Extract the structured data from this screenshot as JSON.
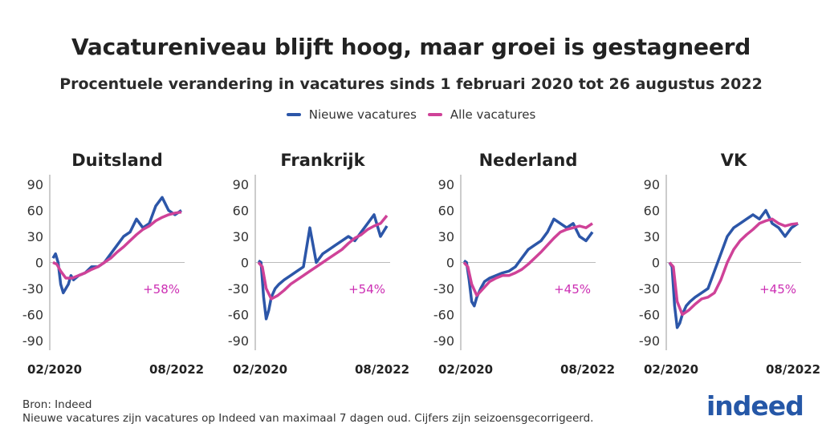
{
  "title": "Vacatureniveau blijft hoog, maar groei is gestagneerd",
  "subtitle": "Procentuele verandering in vacatures sinds 1 februari 2020 tot 26 augustus 2022",
  "legend": {
    "new_label": "Nieuwe vacatures",
    "all_label": "Alle vacatures"
  },
  "colors": {
    "new": "#2c56a8",
    "all": "#cf4298",
    "annotation": "#cc2eb3"
  },
  "footer": {
    "source": "Bron: Indeed",
    "note": "Nieuwe vacatures zijn vacatures op Indeed van maximaal 7 dagen oud. Cijfers zijn seizoensgecorrigeerd."
  },
  "logo": "indeed",
  "chart_data": [
    {
      "type": "line",
      "title": "Duitsland",
      "ylim": [
        -90,
        90
      ],
      "yticks": [
        "90",
        "60",
        "30",
        "0",
        "-30",
        "-60",
        "-90"
      ],
      "x_start_label": "02/2020",
      "x_end_label": "08/2022",
      "annotation": "+58%",
      "series": [
        {
          "name": "Nieuwe vacatures",
          "x": [
            0,
            0.02,
            0.04,
            0.06,
            0.08,
            0.1,
            0.12,
            0.14,
            0.16,
            0.2,
            0.25,
            0.3,
            0.35,
            0.4,
            0.45,
            0.5,
            0.55,
            0.6,
            0.65,
            0.7,
            0.75,
            0.8,
            0.85,
            0.9,
            0.95,
            1.0
          ],
          "values": [
            5,
            10,
            0,
            -25,
            -35,
            -30,
            -25,
            -15,
            -20,
            -15,
            -12,
            -5,
            -5,
            0,
            10,
            20,
            30,
            35,
            50,
            40,
            45,
            65,
            75,
            60,
            55,
            60
          ]
        },
        {
          "name": "Alle vacatures",
          "x": [
            0,
            0.03,
            0.06,
            0.1,
            0.15,
            0.2,
            0.25,
            0.3,
            0.35,
            0.4,
            0.45,
            0.5,
            0.55,
            0.6,
            0.65,
            0.7,
            0.75,
            0.8,
            0.85,
            0.9,
            0.95,
            1.0
          ],
          "values": [
            0,
            -2,
            -10,
            -18,
            -18,
            -15,
            -12,
            -8,
            -5,
            0,
            5,
            12,
            18,
            25,
            32,
            38,
            42,
            48,
            52,
            55,
            57,
            58
          ]
        }
      ]
    },
    {
      "type": "line",
      "title": "Frankrijk",
      "ylim": [
        -90,
        90
      ],
      "yticks": [
        "90",
        "60",
        "30",
        "0",
        "-30",
        "-60",
        "-90"
      ],
      "x_start_label": "02/2020",
      "x_end_label": "08/2022",
      "annotation": "+54%",
      "series": [
        {
          "name": "Nieuwe vacatures",
          "x": [
            0,
            0.02,
            0.04,
            0.06,
            0.08,
            0.1,
            0.13,
            0.16,
            0.2,
            0.25,
            0.3,
            0.35,
            0.4,
            0.45,
            0.5,
            0.55,
            0.6,
            0.65,
            0.7,
            0.75,
            0.8,
            0.85,
            0.9,
            0.95,
            1.0
          ],
          "values": [
            2,
            0,
            -40,
            -65,
            -55,
            -40,
            -30,
            -25,
            -20,
            -15,
            -10,
            -5,
            40,
            0,
            10,
            15,
            20,
            25,
            30,
            25,
            35,
            45,
            55,
            30,
            42
          ]
        },
        {
          "name": "Alle vacatures",
          "x": [
            0,
            0.03,
            0.06,
            0.1,
            0.15,
            0.2,
            0.25,
            0.3,
            0.35,
            0.4,
            0.45,
            0.5,
            0.55,
            0.6,
            0.65,
            0.7,
            0.75,
            0.8,
            0.85,
            0.9,
            0.95,
            1.0
          ],
          "values": [
            0,
            -5,
            -30,
            -42,
            -38,
            -32,
            -25,
            -20,
            -15,
            -10,
            -5,
            0,
            5,
            10,
            15,
            22,
            28,
            32,
            38,
            42,
            45,
            54
          ]
        }
      ]
    },
    {
      "type": "line",
      "title": "Nederland",
      "ylim": [
        -90,
        90
      ],
      "yticks": [
        "90",
        "60",
        "30",
        "0",
        "-30",
        "-60",
        "-90"
      ],
      "x_start_label": "02/2020",
      "x_end_label": "08/2022",
      "annotation": "+45%",
      "series": [
        {
          "name": "Nieuwe vacatures",
          "x": [
            0,
            0.02,
            0.04,
            0.06,
            0.08,
            0.1,
            0.13,
            0.16,
            0.2,
            0.25,
            0.3,
            0.35,
            0.4,
            0.45,
            0.5,
            0.55,
            0.6,
            0.65,
            0.7,
            0.75,
            0.8,
            0.85,
            0.9,
            0.95,
            1.0
          ],
          "values": [
            2,
            0,
            -20,
            -45,
            -50,
            -40,
            -30,
            -22,
            -18,
            -15,
            -12,
            -10,
            -5,
            5,
            15,
            20,
            25,
            35,
            50,
            45,
            40,
            45,
            30,
            25,
            35
          ]
        },
        {
          "name": "Alle vacatures",
          "x": [
            0,
            0.03,
            0.06,
            0.1,
            0.15,
            0.2,
            0.25,
            0.3,
            0.35,
            0.4,
            0.45,
            0.5,
            0.55,
            0.6,
            0.65,
            0.7,
            0.75,
            0.8,
            0.85,
            0.9,
            0.95,
            1.0
          ],
          "values": [
            0,
            -5,
            -25,
            -38,
            -30,
            -22,
            -18,
            -15,
            -15,
            -12,
            -8,
            -2,
            5,
            12,
            20,
            28,
            35,
            38,
            40,
            42,
            40,
            45
          ]
        }
      ]
    },
    {
      "type": "line",
      "title": "VK",
      "ylim": [
        -90,
        90
      ],
      "yticks": [
        "90",
        "60",
        "30",
        "0",
        "-30",
        "-60",
        "-90"
      ],
      "x_start_label": "02/2020",
      "x_end_label": "08/2022",
      "annotation": "+45%",
      "series": [
        {
          "name": "Nieuwe vacatures",
          "x": [
            0,
            0.02,
            0.04,
            0.06,
            0.08,
            0.1,
            0.13,
            0.16,
            0.2,
            0.25,
            0.3,
            0.35,
            0.4,
            0.45,
            0.5,
            0.55,
            0.6,
            0.65,
            0.7,
            0.75,
            0.8,
            0.85,
            0.9,
            0.95,
            1.0
          ],
          "values": [
            0,
            -5,
            -50,
            -75,
            -70,
            -60,
            -50,
            -45,
            -40,
            -35,
            -30,
            -10,
            10,
            30,
            40,
            45,
            50,
            55,
            50,
            60,
            45,
            40,
            30,
            40,
            45
          ]
        },
        {
          "name": "Alle vacatures",
          "x": [
            0,
            0.03,
            0.06,
            0.1,
            0.15,
            0.2,
            0.25,
            0.3,
            0.35,
            0.4,
            0.45,
            0.5,
            0.55,
            0.6,
            0.65,
            0.7,
            0.75,
            0.8,
            0.85,
            0.9,
            0.95,
            1.0
          ],
          "values": [
            0,
            -5,
            -45,
            -60,
            -55,
            -48,
            -42,
            -40,
            -35,
            -20,
            0,
            15,
            25,
            32,
            38,
            45,
            48,
            50,
            45,
            42,
            44,
            45
          ]
        }
      ]
    }
  ]
}
